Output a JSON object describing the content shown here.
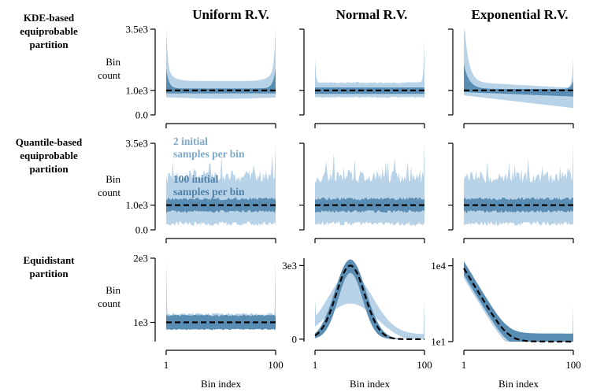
{
  "chart_data": {
    "type": "area",
    "column_titles": [
      "Uniform R.V.",
      "Normal R.V.",
      "Exponential R.V."
    ],
    "row_labels": [
      [
        "KDE-based",
        "equiprobable",
        "partition"
      ],
      [
        "Quantile-based",
        "equiprobable",
        "partition"
      ],
      [
        "Equidistant",
        "partition"
      ]
    ],
    "ylabel": [
      "Bin",
      "count"
    ],
    "xlabel": "Bin index",
    "x_range": [
      1,
      100
    ],
    "x_ticks": [
      "1",
      "100"
    ],
    "legend_annotations": {
      "two_samples": [
        "2 initial",
        "samples per bin"
      ],
      "hundred_samples": [
        "100 initial",
        "samples per bin"
      ]
    },
    "colors": {
      "light_band": "#b8d3e8",
      "dark_band": "#5a8db3",
      "mean_line": "#000000"
    },
    "series_names": [
      "2 initial samples per bin (range)",
      "100 initial samples per bin (range)",
      "mean"
    ],
    "panels": [
      {
        "id": "kde-uniform",
        "row": 0,
        "col": 0,
        "yscale": "linear",
        "ylim": [
          0,
          3500
        ],
        "y_ticks": [
          0,
          1000,
          3500
        ],
        "y_tick_labels": [
          "0.0",
          "1.0e3",
          "3.5e3"
        ],
        "show_ylabel": true,
        "shape": "kde_uniform",
        "mean": 1000
      },
      {
        "id": "kde-normal",
        "row": 0,
        "col": 1,
        "yscale": "linear",
        "ylim": [
          0,
          3500
        ],
        "y_ticks": [
          0,
          1000,
          3500
        ],
        "y_tick_labels": [],
        "show_ylabel": false,
        "shape": "kde_normal",
        "mean": 1000
      },
      {
        "id": "kde-exponential",
        "row": 0,
        "col": 2,
        "yscale": "linear",
        "ylim": [
          0,
          3500
        ],
        "y_ticks": [
          0,
          1000,
          3500
        ],
        "y_tick_labels": [],
        "show_ylabel": false,
        "shape": "kde_exponential",
        "mean": 1000
      },
      {
        "id": "quantile-uniform",
        "row": 1,
        "col": 0,
        "yscale": "linear",
        "ylim": [
          0,
          3500
        ],
        "y_ticks": [
          0,
          1000,
          3500
        ],
        "y_tick_labels": [
          "0.0",
          "1.0e3",
          "3.5e3"
        ],
        "show_ylabel": true,
        "shape": "quantile",
        "mean": 1000,
        "annotations": true
      },
      {
        "id": "quantile-normal",
        "row": 1,
        "col": 1,
        "yscale": "linear",
        "ylim": [
          0,
          3500
        ],
        "y_ticks": [
          0,
          1000,
          3500
        ],
        "y_tick_labels": [],
        "show_ylabel": false,
        "shape": "quantile",
        "mean": 1000
      },
      {
        "id": "quantile-exponential",
        "row": 1,
        "col": 2,
        "yscale": "linear",
        "ylim": [
          0,
          3500
        ],
        "y_ticks": [
          0,
          1000,
          3500
        ],
        "y_tick_labels": [],
        "show_ylabel": false,
        "shape": "quantile",
        "mean": 1000
      },
      {
        "id": "equidistant-uniform",
        "row": 2,
        "col": 0,
        "yscale": "linear",
        "ylim": [
          700,
          2000
        ],
        "y_ticks": [
          1000,
          2000
        ],
        "y_tick_labels": [
          "1e3",
          "2e3"
        ],
        "show_ylabel": true,
        "shape": "equi_uniform",
        "mean": 1000
      },
      {
        "id": "equidistant-normal",
        "row": 2,
        "col": 1,
        "yscale": "linear",
        "ylim": [
          -100,
          3300
        ],
        "y_ticks": [
          0,
          3000
        ],
        "y_tick_labels": [
          "0",
          "3e3"
        ],
        "show_ylabel": false,
        "shape": "equi_normal",
        "peak": 3000,
        "peak_bin": 33
      },
      {
        "id": "equidistant-exponential",
        "row": 2,
        "col": 2,
        "yscale": "log",
        "ylim": [
          10,
          20000
        ],
        "y_ticks": [
          10,
          10000
        ],
        "y_tick_labels": [
          "1e1",
          "1e4"
        ],
        "show_ylabel": false,
        "shape": "equi_exponential",
        "start": 8000
      }
    ]
  }
}
